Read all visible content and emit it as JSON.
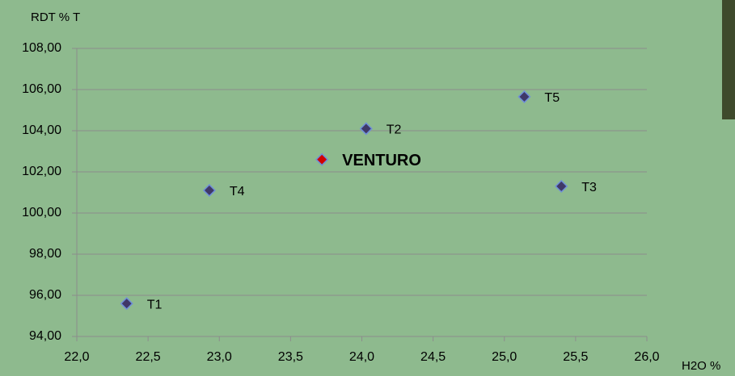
{
  "chart_data": {
    "type": "scatter",
    "y_label": "RDT % T",
    "x_label": "H2O %",
    "x": [
      22.35,
      22.93,
      23.72,
      24.03,
      25.14,
      25.4
    ],
    "values": [
      95.6,
      101.1,
      102.6,
      104.1,
      105.65,
      101.3
    ],
    "labels": [
      "T1",
      "T4",
      "VENTURO",
      "T2",
      "T5",
      "T3"
    ],
    "colors": [
      "#3f3868",
      "#3f3868",
      "#d10000",
      "#3f3868",
      "#3f3868",
      "#3f3868"
    ],
    "label_colors": [
      "#000000",
      "#000000",
      "#c00000",
      "#000000",
      "#000000",
      "#000000"
    ],
    "xlim": [
      22,
      26
    ],
    "xticks": [
      {
        "value": 22,
        "label": "22,0"
      },
      {
        "value": 22.5,
        "label": "22,5"
      },
      {
        "value": 23,
        "label": "23,0"
      },
      {
        "value": 23.5,
        "label": "23,5"
      },
      {
        "value": 24,
        "label": "24,0"
      },
      {
        "value": 24.5,
        "label": "24,5"
      },
      {
        "value": 25,
        "label": "25,0"
      },
      {
        "value": 25.5,
        "label": "25,5"
      },
      {
        "value": 26,
        "label": "26,0"
      }
    ],
    "ylim": [
      94,
      108
    ],
    "yticks": [
      {
        "value": 94,
        "label": "94,00"
      },
      {
        "value": 96,
        "label": "96,00"
      },
      {
        "value": 98,
        "label": "98,00"
      },
      {
        "value": 100,
        "label": "100,00"
      },
      {
        "value": 102,
        "label": "102,00"
      },
      {
        "value": 104,
        "label": "104,00"
      },
      {
        "value": 106,
        "label": "106,00"
      },
      {
        "value": 108,
        "label": "108,00"
      }
    ],
    "grid": true
  }
}
